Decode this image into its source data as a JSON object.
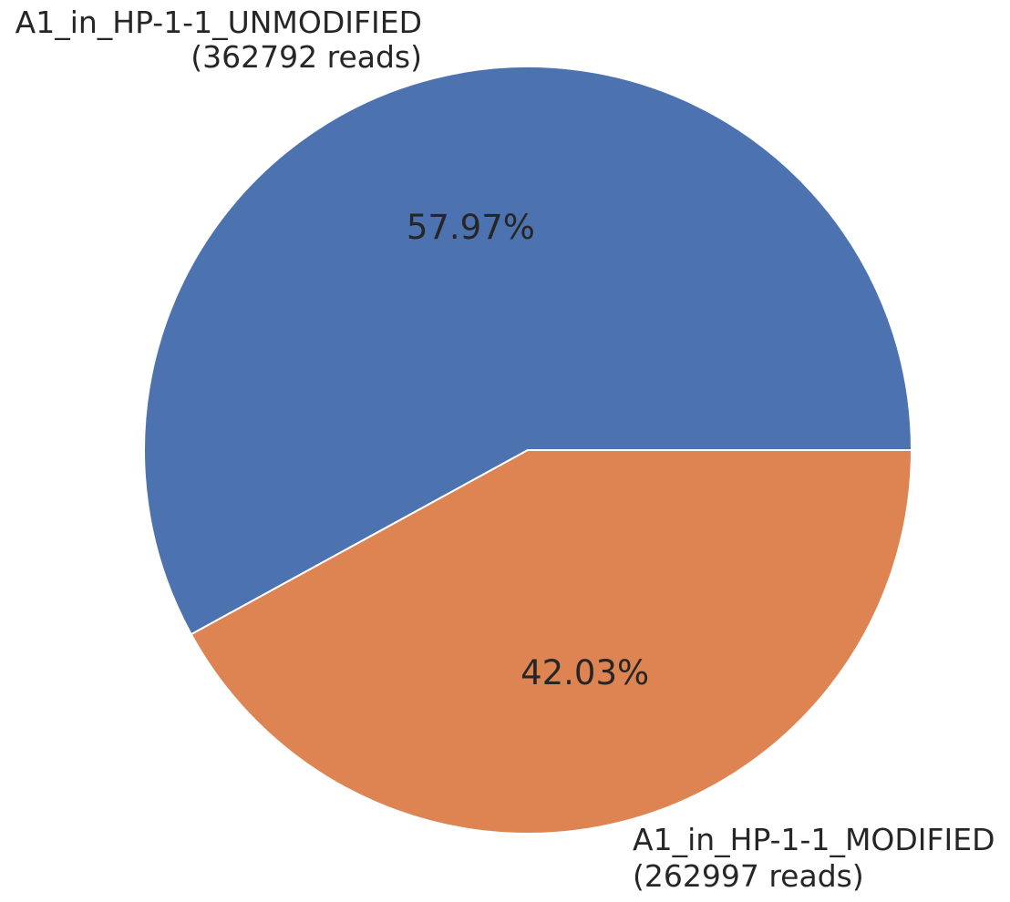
{
  "chart_data": {
    "type": "pie",
    "slices": [
      {
        "label": "A1_in_HP-1-1_UNMODIFIED",
        "reads_text": "(362792 reads)",
        "value": 362792,
        "percent_text": "57.97%",
        "color": "#4c72b0"
      },
      {
        "label": "A1_in_HP-1-1_MODIFIED",
        "reads_text": "(262997 reads)",
        "value": 262997,
        "percent_text": "42.03%",
        "color": "#dd8452"
      }
    ],
    "start_angle_deg": 0,
    "direction": "counterclockwise",
    "edge_color": "#ffffff"
  }
}
